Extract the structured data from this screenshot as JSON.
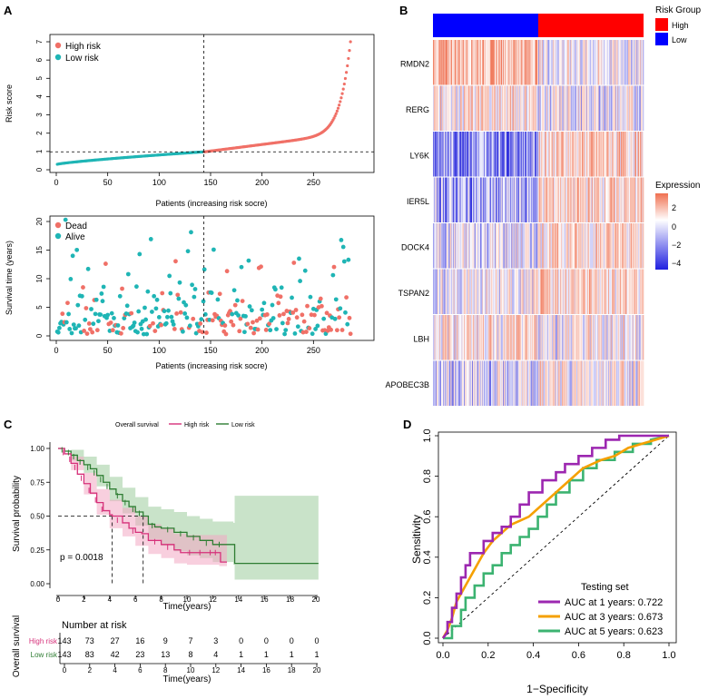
{
  "colors": {
    "high": "#F07067",
    "low": "#1FB5B5",
    "km_high": "#D6317A",
    "km_low": "#2E7D32",
    "km_high_band": "#F2A7C3",
    "km_low_band": "#9CCC9C",
    "heat_high": "#F08060",
    "heat_low": "#3030D8",
    "group_high": "#FF0000",
    "group_low": "#0000FF",
    "roc1": "#9C27B0",
    "roc3": "#F5A000",
    "roc5": "#3CB371"
  },
  "panels": {
    "a": "A",
    "b": "B",
    "c": "C",
    "d": "D"
  },
  "chart_data": [
    {
      "id": "risk-score",
      "type": "scatter",
      "xlabel": "Patients (increasing risk socre)",
      "ylabel": "Risk score",
      "xlim": [
        0,
        290
      ],
      "ylim": [
        0,
        7
      ],
      "xticks": [
        "0",
        "50",
        "100",
        "150",
        "200",
        "250"
      ],
      "yticks": [
        "0",
        "1",
        "2",
        "3",
        "4",
        "5",
        "6",
        "7"
      ],
      "n": 286,
      "cutoff_index": 143,
      "cutoff_score": 0.98,
      "legend": [
        "High risk",
        "Low risk"
      ],
      "low_range": [
        0.3,
        0.98
      ],
      "high_range": [
        0.98,
        7.0
      ]
    },
    {
      "id": "survival-status",
      "type": "scatter",
      "xlabel": "Patients (increasing risk socre)",
      "ylabel": "Survival time (years)",
      "xlim": [
        0,
        290
      ],
      "ylim": [
        0,
        20
      ],
      "xticks": [
        "0",
        "50",
        "100",
        "150",
        "200",
        "250"
      ],
      "yticks": [
        "0",
        "5",
        "10",
        "15",
        "20"
      ],
      "legend": [
        "Dead",
        "Alive"
      ]
    },
    {
      "id": "heatmap",
      "type": "heatmap",
      "genes": [
        "RMDN2",
        "RERG",
        "LY6K",
        "IER5L",
        "DOCK4",
        "TSPAN2",
        "LBH",
        "APOBEC3B"
      ],
      "group_legend_title": "Risk Group",
      "group_levels": [
        "High",
        "Low"
      ],
      "expression_title": "Expression",
      "expression_ticks": [
        "2",
        "0",
        "−2",
        "−4"
      ],
      "n_low": 143,
      "n_high": 143
    },
    {
      "id": "km",
      "type": "line",
      "title": "Overall survival",
      "legend": [
        "High risk",
        "Low risk"
      ],
      "xlabel": "Time(years)",
      "ylabel": "Survival probability",
      "xticks": [
        "0",
        "2",
        "4",
        "6",
        "8",
        "10",
        "12",
        "14",
        "16",
        "18",
        "20"
      ],
      "yticks": [
        "0.00",
        "0.25",
        "0.50",
        "0.75",
        "1.00"
      ],
      "pvalue": "p = 0.0018",
      "median_high": 4.2,
      "median_low": 6.6,
      "high_curve": [
        [
          0,
          1.0
        ],
        [
          0.5,
          0.96
        ],
        [
          1,
          0.89
        ],
        [
          1.5,
          0.81
        ],
        [
          2,
          0.74
        ],
        [
          2.5,
          0.67
        ],
        [
          3,
          0.6
        ],
        [
          3.5,
          0.54
        ],
        [
          4,
          0.51
        ],
        [
          4.2,
          0.5
        ],
        [
          5,
          0.45
        ],
        [
          5.5,
          0.41
        ],
        [
          6,
          0.38
        ],
        [
          6.5,
          0.37
        ],
        [
          7,
          0.32
        ],
        [
          8,
          0.29
        ],
        [
          9,
          0.25
        ],
        [
          9.5,
          0.23
        ],
        [
          12.5,
          0.23
        ],
        [
          12.6,
          0.16
        ],
        [
          13.1,
          0.16
        ]
      ],
      "low_curve": [
        [
          0,
          1.0
        ],
        [
          0.5,
          0.98
        ],
        [
          1,
          0.95
        ],
        [
          1.5,
          0.91
        ],
        [
          2,
          0.88
        ],
        [
          2.5,
          0.85
        ],
        [
          3,
          0.8
        ],
        [
          3.5,
          0.75
        ],
        [
          4,
          0.7
        ],
        [
          4.5,
          0.66
        ],
        [
          5,
          0.61
        ],
        [
          5.5,
          0.57
        ],
        [
          6,
          0.53
        ],
        [
          6.6,
          0.5
        ],
        [
          7,
          0.44
        ],
        [
          7.5,
          0.42
        ],
        [
          8,
          0.41
        ],
        [
          9,
          0.38
        ],
        [
          10,
          0.35
        ],
        [
          11,
          0.32
        ],
        [
          12,
          0.29
        ],
        [
          13.6,
          0.29
        ],
        [
          13.7,
          0.15
        ],
        [
          20.2,
          0.15
        ]
      ],
      "high_band_upper": [
        [
          0,
          1.0
        ],
        [
          1,
          0.94
        ],
        [
          2,
          0.82
        ],
        [
          3,
          0.7
        ],
        [
          4,
          0.62
        ],
        [
          5,
          0.56
        ],
        [
          6,
          0.5
        ],
        [
          7,
          0.44
        ],
        [
          8,
          0.41
        ],
        [
          9,
          0.37
        ],
        [
          10,
          0.36
        ],
        [
          12.5,
          0.36
        ],
        [
          13.1,
          0.3
        ]
      ],
      "high_band_lower": [
        [
          0,
          1.0
        ],
        [
          1,
          0.84
        ],
        [
          2,
          0.66
        ],
        [
          3,
          0.51
        ],
        [
          4,
          0.41
        ],
        [
          5,
          0.35
        ],
        [
          6,
          0.28
        ],
        [
          7,
          0.22
        ],
        [
          8,
          0.19
        ],
        [
          9,
          0.15
        ],
        [
          10,
          0.14
        ],
        [
          12.5,
          0.13
        ],
        [
          13.1,
          0.08
        ]
      ],
      "low_band_upper": [
        [
          0,
          1.0
        ],
        [
          1,
          0.99
        ],
        [
          2,
          0.94
        ],
        [
          3,
          0.88
        ],
        [
          4,
          0.79
        ],
        [
          5,
          0.71
        ],
        [
          6,
          0.64
        ],
        [
          7,
          0.57
        ],
        [
          8,
          0.55
        ],
        [
          9,
          0.53
        ],
        [
          10,
          0.5
        ],
        [
          11,
          0.48
        ],
        [
          12,
          0.46
        ],
        [
          13.6,
          0.45
        ],
        [
          13.7,
          0.65
        ],
        [
          20.2,
          0.65
        ]
      ],
      "low_band_lower": [
        [
          0,
          1.0
        ],
        [
          1,
          0.91
        ],
        [
          2,
          0.82
        ],
        [
          3,
          0.72
        ],
        [
          4,
          0.61
        ],
        [
          5,
          0.52
        ],
        [
          6,
          0.43
        ],
        [
          7,
          0.33
        ],
        [
          8,
          0.28
        ],
        [
          9,
          0.24
        ],
        [
          10,
          0.21
        ],
        [
          11,
          0.19
        ],
        [
          12,
          0.16
        ],
        [
          13.6,
          0.14
        ],
        [
          13.7,
          0.03
        ],
        [
          20.2,
          0.03
        ]
      ]
    },
    {
      "id": "risk-table",
      "type": "table",
      "title": "Number at risk",
      "ylabel": "Overall survival",
      "xlabel": "Time(years)",
      "times": [
        "0",
        "2",
        "4",
        "6",
        "8",
        "10",
        "12",
        "14",
        "16",
        "18",
        "20"
      ],
      "rows": [
        {
          "name": "High risk",
          "values": [
            "143",
            "73",
            "27",
            "16",
            "9",
            "7",
            "3",
            "0",
            "0",
            "0",
            "0"
          ]
        },
        {
          "name": "Low risk",
          "values": [
            "143",
            "83",
            "42",
            "23",
            "13",
            "8",
            "4",
            "1",
            "1",
            "1",
            "1"
          ]
        }
      ]
    },
    {
      "id": "roc",
      "type": "line",
      "xlabel": "1−Specificity",
      "ylabel": "Sensitivity",
      "xticks": [
        "0.0",
        "0.2",
        "0.4",
        "0.6",
        "0.8",
        "1.0"
      ],
      "yticks": [
        "0.0",
        "0.2",
        "0.4",
        "0.6",
        "0.8",
        "1.0"
      ],
      "legend_title": "Testing set",
      "series": [
        {
          "name": "AUC at 1 years: 0.722",
          "points": [
            [
              0,
              0
            ],
            [
              0.02,
              0.03
            ],
            [
              0.02,
              0.08
            ],
            [
              0.04,
              0.08
            ],
            [
              0.04,
              0.15
            ],
            [
              0.06,
              0.15
            ],
            [
              0.06,
              0.22
            ],
            [
              0.08,
              0.22
            ],
            [
              0.08,
              0.3
            ],
            [
              0.1,
              0.3
            ],
            [
              0.1,
              0.36
            ],
            [
              0.12,
              0.36
            ],
            [
              0.12,
              0.42
            ],
            [
              0.18,
              0.42
            ],
            [
              0.18,
              0.48
            ],
            [
              0.22,
              0.48
            ],
            [
              0.22,
              0.52
            ],
            [
              0.26,
              0.52
            ],
            [
              0.26,
              0.55
            ],
            [
              0.3,
              0.55
            ],
            [
              0.3,
              0.6
            ],
            [
              0.34,
              0.6
            ],
            [
              0.34,
              0.66
            ],
            [
              0.38,
              0.66
            ],
            [
              0.38,
              0.72
            ],
            [
              0.44,
              0.72
            ],
            [
              0.44,
              0.78
            ],
            [
              0.5,
              0.78
            ],
            [
              0.5,
              0.82
            ],
            [
              0.54,
              0.82
            ],
            [
              0.54,
              0.86
            ],
            [
              0.6,
              0.86
            ],
            [
              0.6,
              0.9
            ],
            [
              0.66,
              0.9
            ],
            [
              0.66,
              0.94
            ],
            [
              0.72,
              0.94
            ],
            [
              0.72,
              0.98
            ],
            [
              0.78,
              0.98
            ],
            [
              0.78,
              1.0
            ],
            [
              1,
              1
            ]
          ]
        },
        {
          "name": "AUC at 3 years: 0.673",
          "points": [
            [
              0,
              0
            ],
            [
              0.02,
              0.04
            ],
            [
              0.04,
              0.1
            ],
            [
              0.06,
              0.18
            ],
            [
              0.08,
              0.22
            ],
            [
              0.1,
              0.26
            ],
            [
              0.12,
              0.3
            ],
            [
              0.14,
              0.34
            ],
            [
              0.16,
              0.38
            ],
            [
              0.18,
              0.42
            ],
            [
              0.2,
              0.45
            ],
            [
              0.22,
              0.48
            ],
            [
              0.24,
              0.5
            ],
            [
              0.26,
              0.52
            ],
            [
              0.28,
              0.54
            ],
            [
              0.3,
              0.56
            ],
            [
              0.34,
              0.58
            ],
            [
              0.38,
              0.6
            ],
            [
              0.42,
              0.64
            ],
            [
              0.46,
              0.68
            ],
            [
              0.5,
              0.72
            ],
            [
              0.54,
              0.76
            ],
            [
              0.58,
              0.8
            ],
            [
              0.62,
              0.84
            ],
            [
              0.66,
              0.86
            ],
            [
              0.7,
              0.88
            ],
            [
              0.76,
              0.9
            ],
            [
              0.82,
              0.94
            ],
            [
              0.88,
              0.96
            ],
            [
              0.94,
              0.98
            ],
            [
              1,
              1
            ]
          ]
        },
        {
          "name": "AUC at 5 years: 0.623",
          "points": [
            [
              0,
              0
            ],
            [
              0.04,
              0.0
            ],
            [
              0.04,
              0.06
            ],
            [
              0.08,
              0.06
            ],
            [
              0.08,
              0.14
            ],
            [
              0.1,
              0.14
            ],
            [
              0.1,
              0.2
            ],
            [
              0.14,
              0.2
            ],
            [
              0.14,
              0.26
            ],
            [
              0.18,
              0.26
            ],
            [
              0.18,
              0.32
            ],
            [
              0.22,
              0.32
            ],
            [
              0.22,
              0.36
            ],
            [
              0.26,
              0.36
            ],
            [
              0.26,
              0.42
            ],
            [
              0.3,
              0.42
            ],
            [
              0.3,
              0.46
            ],
            [
              0.34,
              0.46
            ],
            [
              0.34,
              0.5
            ],
            [
              0.38,
              0.5
            ],
            [
              0.38,
              0.54
            ],
            [
              0.42,
              0.54
            ],
            [
              0.42,
              0.6
            ],
            [
              0.46,
              0.6
            ],
            [
              0.46,
              0.66
            ],
            [
              0.5,
              0.66
            ],
            [
              0.5,
              0.72
            ],
            [
              0.56,
              0.72
            ],
            [
              0.56,
              0.78
            ],
            [
              0.62,
              0.78
            ],
            [
              0.62,
              0.84
            ],
            [
              0.68,
              0.84
            ],
            [
              0.68,
              0.88
            ],
            [
              0.76,
              0.88
            ],
            [
              0.76,
              0.92
            ],
            [
              0.84,
              0.92
            ],
            [
              0.84,
              0.96
            ],
            [
              0.92,
              0.96
            ],
            [
              0.92,
              0.98
            ],
            [
              1,
              1
            ]
          ]
        }
      ]
    }
  ]
}
